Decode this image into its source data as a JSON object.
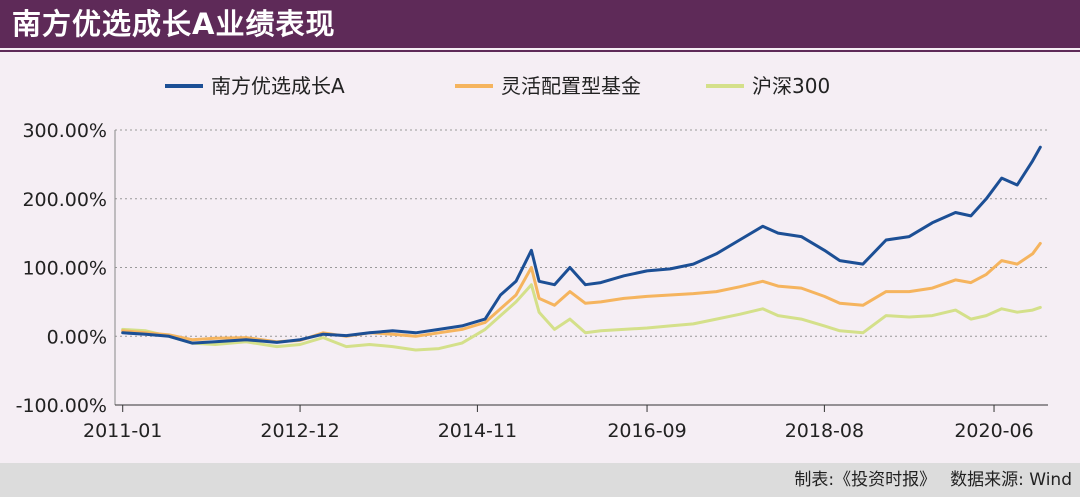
{
  "header": {
    "title": "南方优选成长A业绩表现"
  },
  "footer": {
    "made_by": "制表:《投资时报》",
    "source": "数据来源: Wind"
  },
  "colors": {
    "fund": "#1c4f95",
    "flexible": "#f5b45e",
    "csi300": "#d4e08a",
    "grid": "#999999",
    "header": "#5e2a58"
  },
  "chart_data": {
    "type": "line",
    "title": "",
    "xlabel": "",
    "ylabel": "",
    "ylim": [
      -100,
      300
    ],
    "yticks": [
      "300.00%",
      "200.00%",
      "100.00%",
      "0.00%",
      "-100.00%"
    ],
    "yticks_values": [
      300,
      200,
      100,
      0,
      -100
    ],
    "xlim": [
      "2010-12",
      "2021-01"
    ],
    "xticks": [
      "2011-01",
      "2012-12",
      "2014-11",
      "2016-09",
      "2018-08",
      "2020-06"
    ],
    "legend_position": "top",
    "grid": true,
    "series": [
      {
        "name": "南方优选成长A",
        "color": "#1c4f95",
        "points": [
          [
            "2011-01",
            5
          ],
          [
            "2011-04",
            3
          ],
          [
            "2011-07",
            0
          ],
          [
            "2011-10",
            -10
          ],
          [
            "2012-01",
            -8
          ],
          [
            "2012-05",
            -5
          ],
          [
            "2012-09",
            -9
          ],
          [
            "2012-12",
            -5
          ],
          [
            "2013-03",
            3
          ],
          [
            "2013-06",
            1
          ],
          [
            "2013-09",
            5
          ],
          [
            "2013-12",
            8
          ],
          [
            "2014-03",
            5
          ],
          [
            "2014-06",
            10
          ],
          [
            "2014-09",
            15
          ],
          [
            "2014-12",
            25
          ],
          [
            "2015-02",
            60
          ],
          [
            "2015-04",
            80
          ],
          [
            "2015-06",
            125
          ],
          [
            "2015-07",
            80
          ],
          [
            "2015-09",
            75
          ],
          [
            "2015-11",
            100
          ],
          [
            "2016-01",
            75
          ],
          [
            "2016-03",
            78
          ],
          [
            "2016-06",
            88
          ],
          [
            "2016-09",
            95
          ],
          [
            "2016-12",
            98
          ],
          [
            "2017-03",
            105
          ],
          [
            "2017-06",
            120
          ],
          [
            "2017-09",
            140
          ],
          [
            "2017-12",
            160
          ],
          [
            "2018-02",
            150
          ],
          [
            "2018-05",
            145
          ],
          [
            "2018-08",
            125
          ],
          [
            "2018-10",
            110
          ],
          [
            "2019-01",
            105
          ],
          [
            "2019-04",
            140
          ],
          [
            "2019-07",
            145
          ],
          [
            "2019-10",
            165
          ],
          [
            "2020-01",
            180
          ],
          [
            "2020-03",
            175
          ],
          [
            "2020-05",
            200
          ],
          [
            "2020-07",
            230
          ],
          [
            "2020-09",
            220
          ],
          [
            "2020-11",
            255
          ],
          [
            "2020-12",
            275
          ]
        ]
      },
      {
        "name": "灵活配置型基金",
        "color": "#f5b45e",
        "points": [
          [
            "2011-01",
            8
          ],
          [
            "2011-04",
            5
          ],
          [
            "2011-07",
            2
          ],
          [
            "2011-10",
            -5
          ],
          [
            "2012-01",
            -3
          ],
          [
            "2012-05",
            -2
          ],
          [
            "2012-09",
            -8
          ],
          [
            "2012-12",
            -6
          ],
          [
            "2013-03",
            5
          ],
          [
            "2013-06",
            0
          ],
          [
            "2013-09",
            5
          ],
          [
            "2013-12",
            3
          ],
          [
            "2014-03",
            0
          ],
          [
            "2014-06",
            5
          ],
          [
            "2014-09",
            10
          ],
          [
            "2014-12",
            20
          ],
          [
            "2015-02",
            40
          ],
          [
            "2015-04",
            60
          ],
          [
            "2015-06",
            100
          ],
          [
            "2015-07",
            55
          ],
          [
            "2015-09",
            45
          ],
          [
            "2015-11",
            65
          ],
          [
            "2016-01",
            48
          ],
          [
            "2016-03",
            50
          ],
          [
            "2016-06",
            55
          ],
          [
            "2016-09",
            58
          ],
          [
            "2016-12",
            60
          ],
          [
            "2017-03",
            62
          ],
          [
            "2017-06",
            65
          ],
          [
            "2017-09",
            72
          ],
          [
            "2017-12",
            80
          ],
          [
            "2018-02",
            73
          ],
          [
            "2018-05",
            70
          ],
          [
            "2018-08",
            58
          ],
          [
            "2018-10",
            48
          ],
          [
            "2019-01",
            45
          ],
          [
            "2019-04",
            65
          ],
          [
            "2019-07",
            65
          ],
          [
            "2019-10",
            70
          ],
          [
            "2020-01",
            82
          ],
          [
            "2020-03",
            78
          ],
          [
            "2020-05",
            90
          ],
          [
            "2020-07",
            110
          ],
          [
            "2020-09",
            105
          ],
          [
            "2020-11",
            120
          ],
          [
            "2020-12",
            135
          ]
        ]
      },
      {
        "name": "沪深300",
        "color": "#d4e08a",
        "points": [
          [
            "2011-01",
            10
          ],
          [
            "2011-04",
            8
          ],
          [
            "2011-07",
            0
          ],
          [
            "2011-10",
            -10
          ],
          [
            "2012-01",
            -12
          ],
          [
            "2012-05",
            -8
          ],
          [
            "2012-09",
            -15
          ],
          [
            "2012-12",
            -12
          ],
          [
            "2013-03",
            -2
          ],
          [
            "2013-06",
            -15
          ],
          [
            "2013-09",
            -12
          ],
          [
            "2013-12",
            -15
          ],
          [
            "2014-03",
            -20
          ],
          [
            "2014-06",
            -18
          ],
          [
            "2014-09",
            -10
          ],
          [
            "2014-12",
            10
          ],
          [
            "2015-02",
            30
          ],
          [
            "2015-04",
            50
          ],
          [
            "2015-06",
            75
          ],
          [
            "2015-07",
            35
          ],
          [
            "2015-09",
            10
          ],
          [
            "2015-11",
            25
          ],
          [
            "2016-01",
            5
          ],
          [
            "2016-03",
            8
          ],
          [
            "2016-06",
            10
          ],
          [
            "2016-09",
            12
          ],
          [
            "2016-12",
            15
          ],
          [
            "2017-03",
            18
          ],
          [
            "2017-06",
            25
          ],
          [
            "2017-09",
            32
          ],
          [
            "2017-12",
            40
          ],
          [
            "2018-02",
            30
          ],
          [
            "2018-05",
            25
          ],
          [
            "2018-08",
            15
          ],
          [
            "2018-10",
            8
          ],
          [
            "2019-01",
            5
          ],
          [
            "2019-04",
            30
          ],
          [
            "2019-07",
            28
          ],
          [
            "2019-10",
            30
          ],
          [
            "2020-01",
            38
          ],
          [
            "2020-03",
            25
          ],
          [
            "2020-05",
            30
          ],
          [
            "2020-07",
            40
          ],
          [
            "2020-09",
            35
          ],
          [
            "2020-11",
            38
          ],
          [
            "2020-12",
            42
          ]
        ]
      }
    ]
  }
}
